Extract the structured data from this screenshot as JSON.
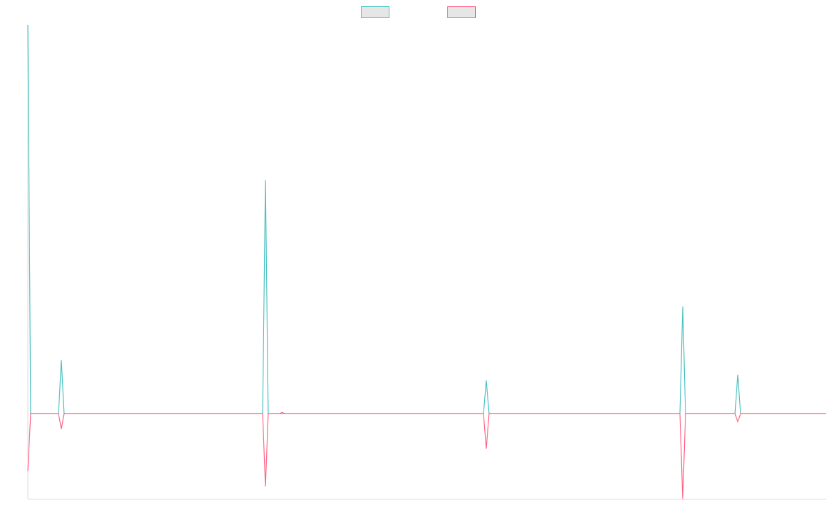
{
  "chart_data": {
    "type": "line",
    "legend": "top",
    "xlim": [
      0,
      1146
    ],
    "ylim": [
      -22,
      100
    ],
    "series": [
      {
        "color": "#4bc0c0",
        "x": [
          0,
          4,
          44,
          48,
          52,
          337,
          341,
          345,
          654,
          658,
          662,
          936,
          940,
          944,
          1015,
          1019,
          1023,
          1146
        ],
        "values": [
          100,
          0,
          0,
          13.8,
          0,
          0,
          60.1,
          0,
          0,
          8.6,
          0,
          0,
          27.6,
          0,
          0,
          10,
          0,
          0
        ]
      },
      {
        "color": "#ff6384",
        "x": [
          0,
          4,
          44,
          48,
          52,
          337,
          341,
          345,
          361,
          365,
          369,
          654,
          658,
          662,
          936,
          940,
          944,
          1015,
          1019,
          1023,
          1146
        ],
        "values": [
          -14.7,
          0,
          0,
          -3.9,
          0,
          0,
          -18.7,
          0,
          0,
          0.4,
          0,
          0,
          -9,
          0,
          0,
          -21.9,
          0,
          0,
          -2,
          0,
          0
        ]
      }
    ]
  }
}
